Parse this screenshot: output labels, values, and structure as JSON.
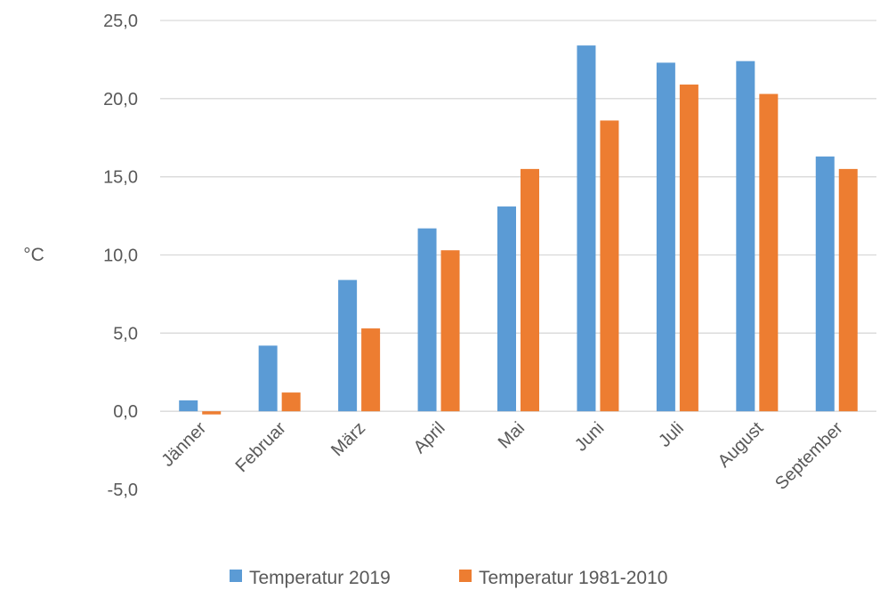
{
  "chart_data": {
    "type": "bar",
    "ylabel": "°C",
    "xlabel": "",
    "ylim": [
      -5,
      25
    ],
    "yticks": [
      "-5,0",
      "0,0",
      "5,0",
      "10,0",
      "15,0",
      "20,0",
      "25,0"
    ],
    "ytick_values": [
      -5,
      0,
      5,
      10,
      15,
      20,
      25
    ],
    "categories": [
      "Jänner",
      "Februar",
      "März",
      "April",
      "Mai",
      "Juni",
      "Juli",
      "August",
      "September"
    ],
    "series": [
      {
        "name": "Temperatur 2019",
        "color": "#5b9bd5",
        "values": [
          0.7,
          4.2,
          8.4,
          11.7,
          13.1,
          23.4,
          22.3,
          22.4,
          16.3
        ]
      },
      {
        "name": "Temperatur 1981-2010",
        "color": "#ed7d31",
        "values": [
          -0.2,
          1.2,
          5.3,
          10.3,
          15.5,
          18.6,
          20.9,
          20.3,
          15.5
        ]
      }
    ],
    "grid": "horizontal",
    "legend": "bottom"
  }
}
